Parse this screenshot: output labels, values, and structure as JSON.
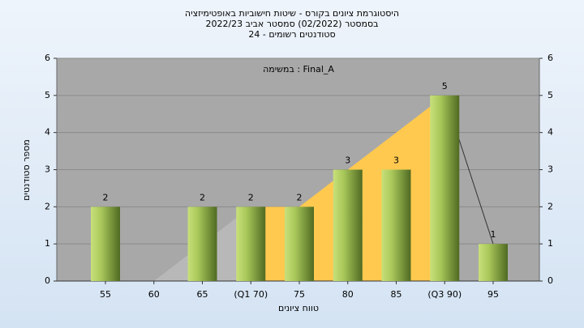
{
  "chart_data": {
    "type": "bar",
    "title": "היסטוגרמת ציונים בקורס - שיטות חישוביות באופטימיזציה",
    "subtitle": "בסמסטר  (02/2022)  סמסטר אביב 2022/23",
    "subtitle2": "סטודנטים רשומים - 24",
    "annotation": "במשימה : Final_A",
    "x_label": "טווח ציונים",
    "y_label": "מספר סטודנטים",
    "categories": [
      "55",
      "60",
      "65",
      "(Q1 70)",
      "75",
      "80",
      "85",
      "(Q3 90)",
      "95"
    ],
    "values": [
      2,
      0,
      2,
      2,
      2,
      3,
      3,
      5,
      1
    ],
    "color": "#8fb23a",
    "ylim": [
      0,
      6
    ],
    "yticks": [
      0,
      1,
      2,
      3,
      4,
      5,
      6
    ],
    "y2lim": [
      0,
      6
    ],
    "y2ticks": [
      0,
      1,
      2,
      3,
      4,
      5,
      6
    ],
    "grid": true
  }
}
